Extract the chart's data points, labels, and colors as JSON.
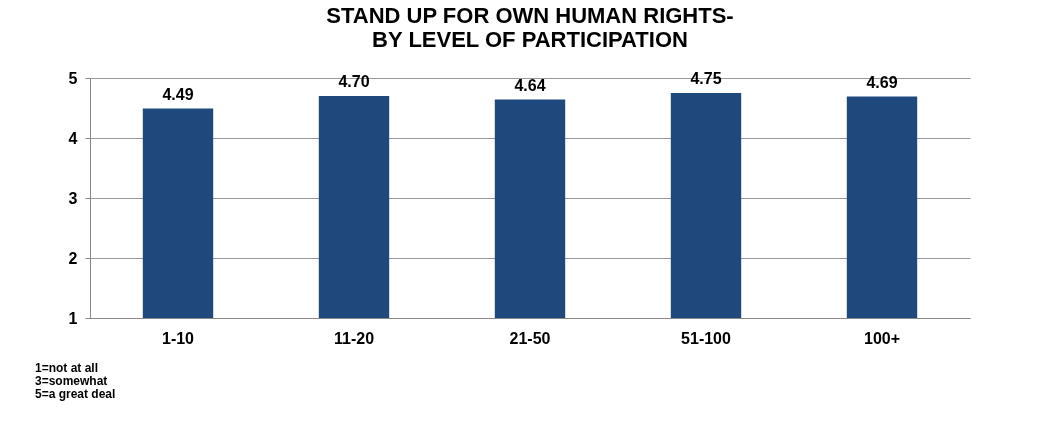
{
  "chart_data": {
    "type": "bar",
    "title": "STAND UP FOR OWN HUMAN RIGHTS-\nBY LEVEL OF PARTICIPATION",
    "categories": [
      "1-10",
      "11-20",
      "21-50",
      "51-100",
      "100+"
    ],
    "values": [
      4.49,
      4.7,
      4.64,
      4.75,
      4.69
    ],
    "value_labels": [
      "4.49",
      "4.70",
      "4.64",
      "4.75",
      "4.69"
    ],
    "color": "#1f497d",
    "ylim": [
      1,
      5
    ],
    "yticks": [
      1,
      2,
      3,
      4,
      5
    ],
    "grid": "y",
    "annotations": [
      "1=not at all",
      "3=somewhat",
      "5=a great deal"
    ]
  }
}
